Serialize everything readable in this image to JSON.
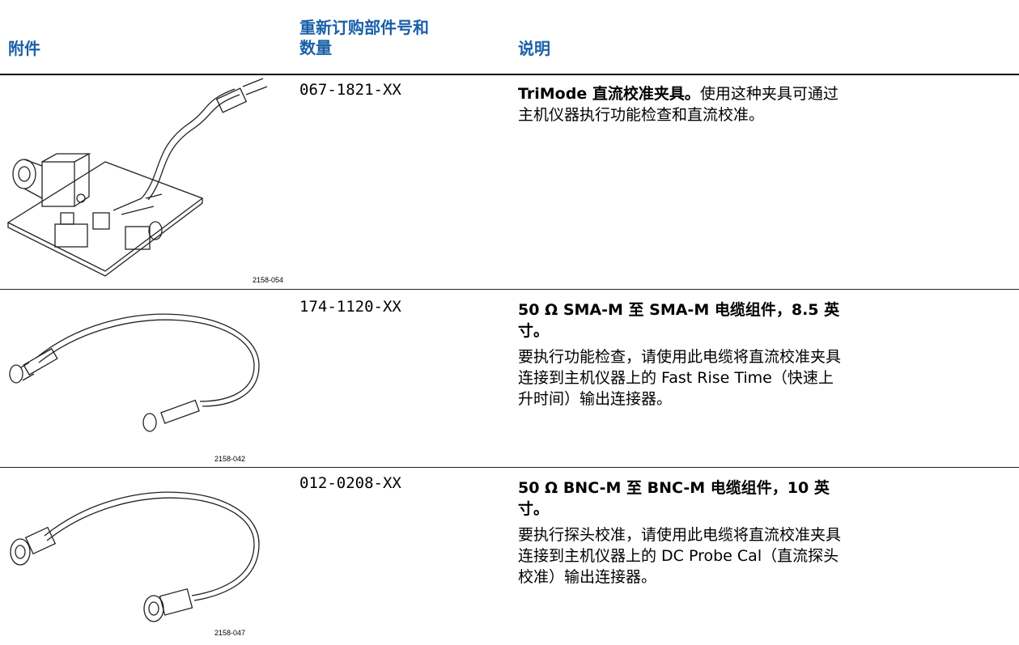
{
  "table": {
    "header": [
      "附件",
      "重新订购部件号和数量",
      "说明"
    ],
    "rows": [
      {
        "figure": "2158-054",
        "part": "067-1821-XX",
        "title": "TriMode 直流校准夹具。",
        "text": "使用这种夹具可通过主机仪器执行功能检查和直流校准。"
      },
      {
        "figure": "2158-042",
        "part": "174-1120-XX",
        "title": "50 Ω SMA-M 至 SMA-M 电缆组件，8.5 英寸。",
        "text": "要执行功能检查，请使用此电缆将直流校准夹具连接到主机仪器上的 Fast Rise Time（快速上升时间）输出连接器。"
      },
      {
        "figure": "2158-047",
        "part": "012-0208-XX",
        "title": "50 Ω BNC-M 至 BNC-M 电缆组件，10 英寸。",
        "text": "要执行探头校准，请使用此电缆将直流校准夹具连接到主机仪器上的 DC Probe Cal（直流探头校准）输出连接器。"
      }
    ]
  }
}
